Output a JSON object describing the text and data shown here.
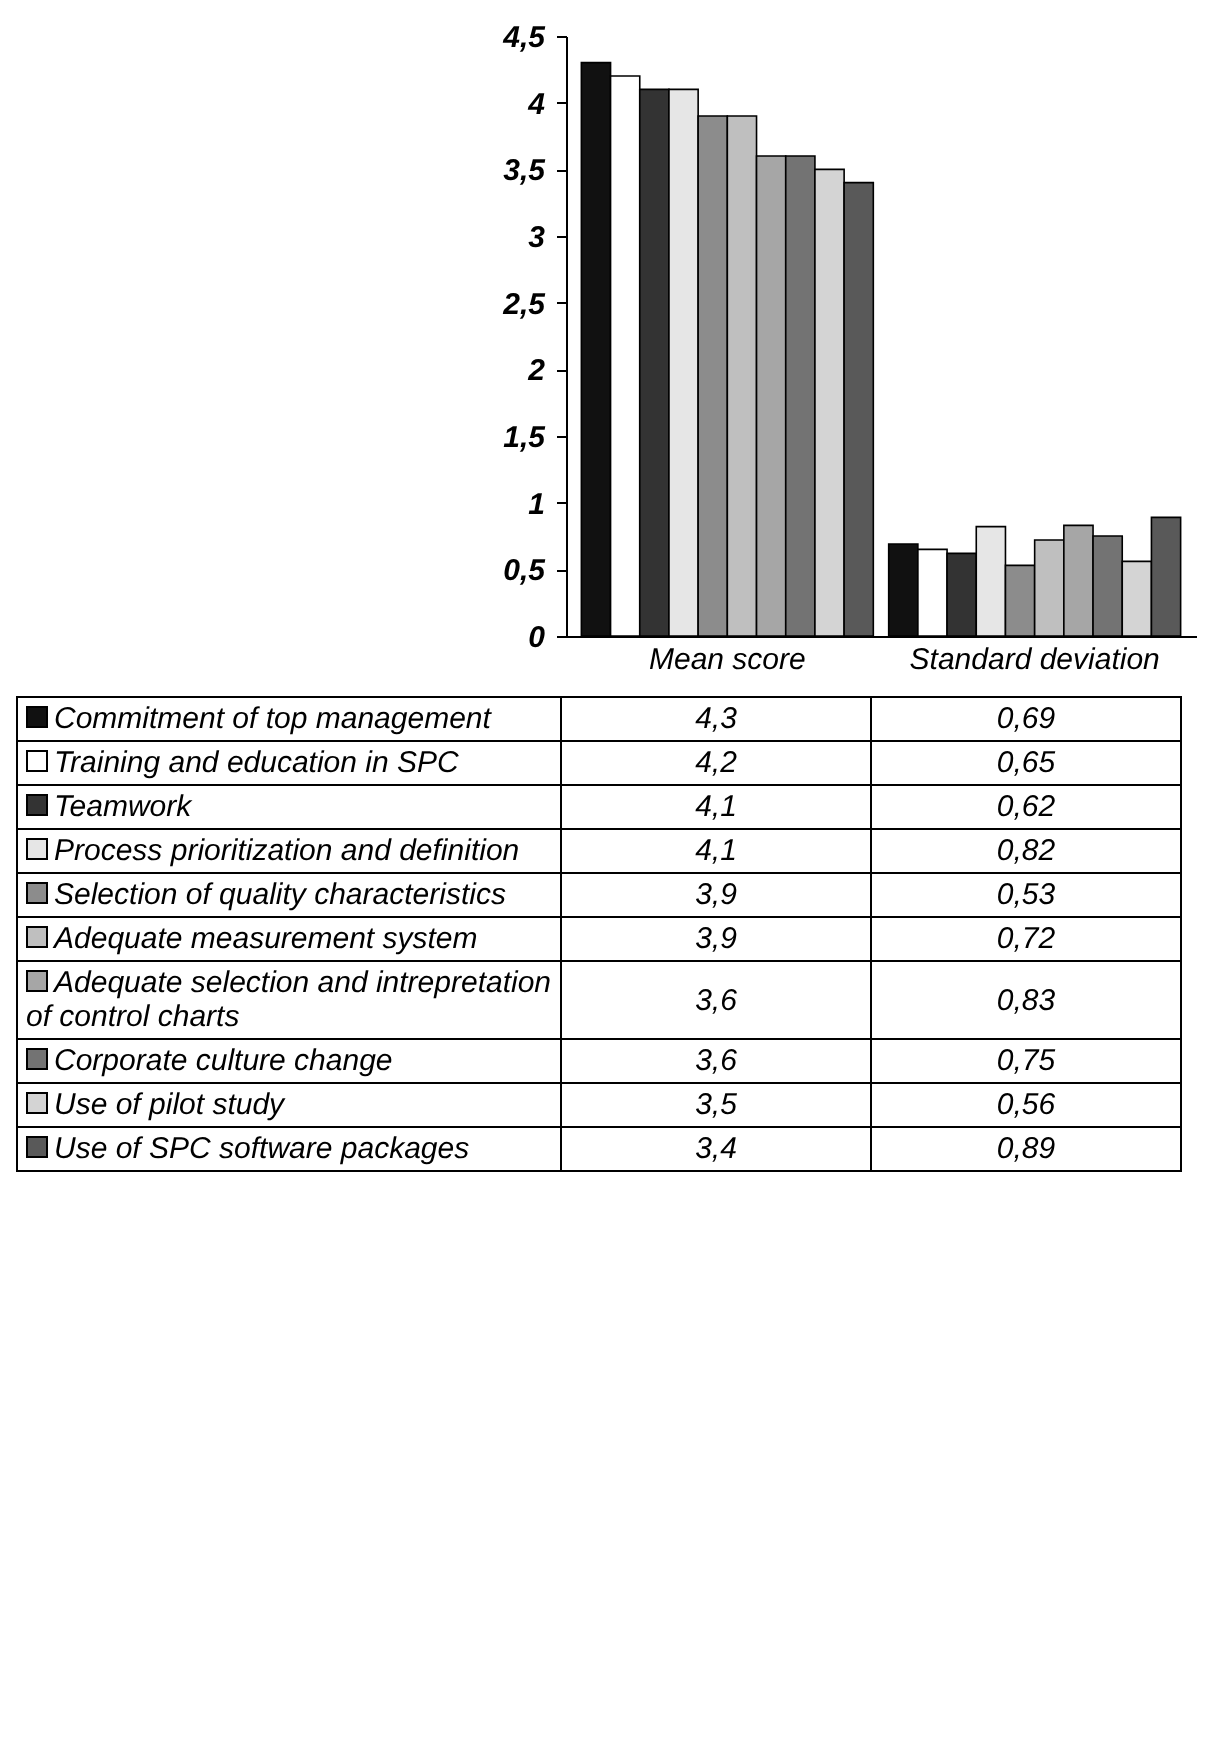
{
  "chart_data": {
    "type": "bar",
    "categories": [
      "Mean score",
      "Standard deviation"
    ],
    "ylim": [
      0,
      4.5
    ],
    "yticks": [
      0,
      {
        "value": 0.5,
        "label": "0,5"
      },
      1,
      {
        "value": 1.5,
        "label": "1,5"
      },
      2,
      {
        "value": 2.5,
        "label": "2,5"
      },
      3,
      {
        "value": 3.5,
        "label": "3,5"
      },
      4,
      {
        "value": 4.5,
        "label": "4,5"
      }
    ],
    "grid": false,
    "legend": "bottom",
    "series": [
      {
        "name": "Commitment of top management",
        "color": "#111111",
        "values": [
          4.3,
          0.69
        ],
        "value_labels": [
          "4,3",
          "0,69"
        ]
      },
      {
        "name": "Training and education in SPC",
        "color": "#ffffff",
        "values": [
          4.2,
          0.65
        ],
        "value_labels": [
          "4,2",
          "0,65"
        ]
      },
      {
        "name": "Teamwork",
        "color": "#333333",
        "values": [
          4.1,
          0.62
        ],
        "value_labels": [
          "4,1",
          "0,62"
        ]
      },
      {
        "name": "Process prioritization and definition",
        "color": "#e6e6e6",
        "values": [
          4.1,
          0.82
        ],
        "value_labels": [
          "4,1",
          "0,82"
        ]
      },
      {
        "name": "Selection of quality characteristics",
        "color": "#8c8c8c",
        "values": [
          3.9,
          0.53
        ],
        "value_labels": [
          "3,9",
          "0,53"
        ]
      },
      {
        "name": "Adequate measurement system",
        "color": "#bfbfbf",
        "values": [
          3.9,
          0.72
        ],
        "value_labels": [
          "3,9",
          "0,72"
        ]
      },
      {
        "name": "Adequate selection and intrepretation of control charts",
        "color": "#a6a6a6",
        "values": [
          3.6,
          0.83
        ],
        "value_labels": [
          "3,6",
          "0,83"
        ]
      },
      {
        "name": "Corporate culture change",
        "color": "#737373",
        "values": [
          3.6,
          0.75
        ],
        "value_labels": [
          "3,6",
          "0,75"
        ]
      },
      {
        "name": "Use of pilot study",
        "color": "#d4d4d4",
        "values": [
          3.5,
          0.56
        ],
        "value_labels": [
          "3,5",
          "0,56"
        ]
      },
      {
        "name": "Use of SPC software packages",
        "color": "#595959",
        "values": [
          3.4,
          0.89
        ],
        "value_labels": [
          "3,4",
          "0,89"
        ]
      }
    ]
  }
}
